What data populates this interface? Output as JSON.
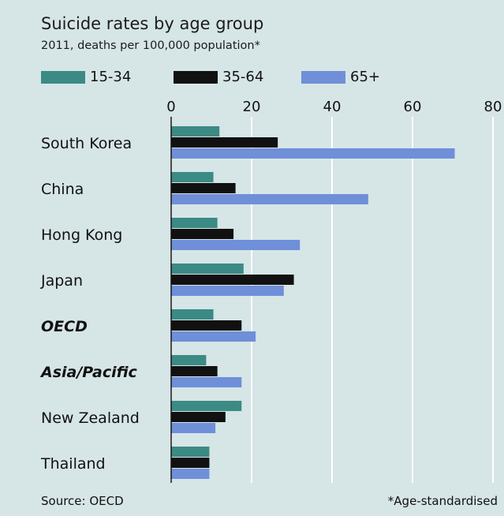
{
  "header": {
    "title": "Suicide rates by age group",
    "subtitle": "2011, deaths per 100,000 population*"
  },
  "footer": {
    "source": "Source: OECD",
    "footnote": "*Age-standardised"
  },
  "colors": {
    "background": "#d6e5e6",
    "series_15_34": "#3c8a84",
    "series_35_64": "#111111",
    "series_65_plus": "#6f8fd9",
    "grid": "#ffffff"
  },
  "chart_data": {
    "type": "bar",
    "orientation": "horizontal",
    "title": "Suicide rates by age group",
    "subtitle": "2011, deaths per 100,000 population*",
    "xlabel": "",
    "ylabel": "",
    "xlim": [
      0,
      80
    ],
    "xticks": [
      "0",
      "20",
      "40",
      "60",
      "80"
    ],
    "grid": true,
    "legend_position": "top",
    "categories": [
      "South Korea",
      "China",
      "Hong Kong",
      "Japan",
      "OECD",
      "Asia/Pacific",
      "New Zealand",
      "Thailand"
    ],
    "emphasized_categories": [
      "OECD",
      "Asia/Pacific"
    ],
    "series": [
      {
        "name": "15-34",
        "color": "#3c8a84",
        "values": [
          12,
          10.5,
          11.5,
          18,
          10.5,
          8.7,
          17.5,
          9.5
        ]
      },
      {
        "name": "35-64",
        "color": "#111111",
        "values": [
          26.5,
          16,
          15.5,
          30.5,
          17.5,
          11.5,
          13.5,
          9.5
        ]
      },
      {
        "name": "65+",
        "color": "#6f8fd9",
        "values": [
          70.5,
          49,
          32,
          28,
          21,
          17.5,
          11,
          9.5
        ]
      }
    ]
  }
}
